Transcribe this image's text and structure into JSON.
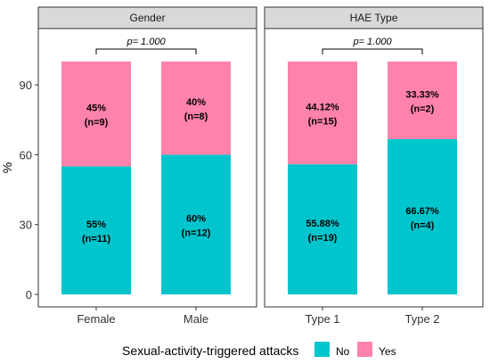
{
  "chart_data": {
    "type": "bar",
    "stacked": true,
    "ylabel": "%",
    "ylim": [
      0,
      100
    ],
    "yticks": [
      0,
      30,
      60,
      90
    ],
    "legend": {
      "title": "Sexual-activity-triggered attacks",
      "position": "bottom",
      "items": [
        {
          "name": "No",
          "color": "#00c5cd"
        },
        {
          "name": "Yes",
          "color": "#ff82ab"
        }
      ]
    },
    "panels": [
      {
        "title": "Gender",
        "annotation": "p= 1.000",
        "categories": [
          "Female",
          "Male"
        ],
        "series": [
          {
            "name": "No",
            "values": [
              55,
              60
            ],
            "labels": [
              "55%",
              "60%"
            ],
            "counts": [
              "(n=11)",
              "(n=12)"
            ]
          },
          {
            "name": "Yes",
            "values": [
              45,
              40
            ],
            "labels": [
              "45%",
              "40%"
            ],
            "counts": [
              "(n=9)",
              "(n=8)"
            ]
          }
        ]
      },
      {
        "title": "HAE Type",
        "annotation": "p= 1.000",
        "categories": [
          "Type 1",
          "Type 2"
        ],
        "series": [
          {
            "name": "No",
            "values": [
              55.88,
              66.67
            ],
            "labels": [
              "55.88%",
              "66.67%"
            ],
            "counts": [
              "(n=19)",
              "(n=4)"
            ]
          },
          {
            "name": "Yes",
            "values": [
              44.12,
              33.33
            ],
            "labels": [
              "44.12%",
              "33.33%"
            ],
            "counts": [
              "(n=15)",
              "(n=2)"
            ]
          }
        ]
      }
    ]
  }
}
